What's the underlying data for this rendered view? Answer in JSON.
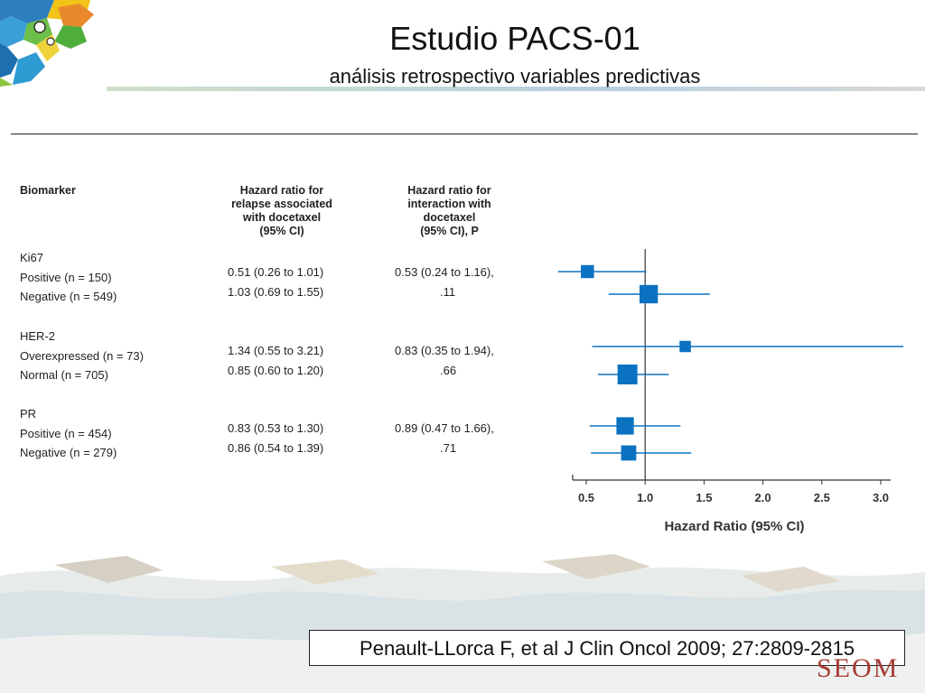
{
  "slide": {
    "title": "Estudio PACS-01",
    "subtitle": "análisis retrospectivo variables predictivas",
    "citation": "Penault-LLorca F, et al J Clin Oncol 2009; 27:2809-2815",
    "brand": "SEOM"
  },
  "table": {
    "headers": {
      "biomarker": "Biomarker",
      "hr_relapse": [
        "Hazard ratio for",
        "relapse associated",
        "with docetaxel",
        "(95% CI)"
      ],
      "hr_interaction": [
        "Hazard ratio for",
        "interaction with",
        "docetaxel",
        "(95% CI), P"
      ]
    },
    "groups": [
      {
        "name": "Ki67",
        "interaction": "0.53 (0.24 to 1.16),",
        "p": ".11",
        "rows": [
          {
            "label": "Positive (n = 150)",
            "hr_text": "0.51 (0.26 to 1.01)"
          },
          {
            "label": "Negative (n = 549)",
            "hr_text": "1.03 (0.69 to 1.55)"
          }
        ]
      },
      {
        "name": "HER-2",
        "interaction": "0.83 (0.35 to 1.94),",
        "p": ".66",
        "rows": [
          {
            "label": "Overexpressed (n = 73)",
            "hr_text": "1.34 (0.55 to 3.21)"
          },
          {
            "label": "Normal (n = 705)",
            "hr_text": "0.85 (0.60 to 1.20)"
          }
        ]
      },
      {
        "name": "PR",
        "interaction": "0.89 (0.47 to 1.66),",
        "p": ".71",
        "rows": [
          {
            "label": "Positive (n = 454)",
            "hr_text": "0.83 (0.53 to 1.30)"
          },
          {
            "label": "Negative (n = 279)",
            "hr_text": "0.86 (0.54 to 1.39)"
          }
        ]
      }
    ]
  },
  "chart_data": {
    "type": "scatter",
    "subtype": "forest-plot",
    "xlabel": "Hazard Ratio (95% CI)",
    "xlim": [
      0.5,
      3.0
    ],
    "xticks": [
      "0.5",
      "1.0",
      "1.5",
      "2.0",
      "2.5",
      "3.0"
    ],
    "reference_line": 1.0,
    "marker_color": "#0a72c1",
    "points": [
      {
        "label": "Ki67 Positive (n = 150)",
        "n": 150,
        "hr": 0.51,
        "lo": 0.26,
        "hi": 1.01
      },
      {
        "label": "Ki67 Negative (n = 549)",
        "n": 549,
        "hr": 1.03,
        "lo": 0.69,
        "hi": 1.55
      },
      {
        "label": "HER-2 Overexpressed (n = 73)",
        "n": 73,
        "hr": 1.34,
        "lo": 0.55,
        "hi": 3.21
      },
      {
        "label": "HER-2 Normal (n = 705)",
        "n": 705,
        "hr": 0.85,
        "lo": 0.6,
        "hi": 1.2
      },
      {
        "label": "PR Positive (n = 454)",
        "n": 454,
        "hr": 0.83,
        "lo": 0.53,
        "hi": 1.3
      },
      {
        "label": "PR Negative (n = 279)",
        "n": 279,
        "hr": 0.86,
        "lo": 0.54,
        "hi": 1.39
      }
    ]
  }
}
